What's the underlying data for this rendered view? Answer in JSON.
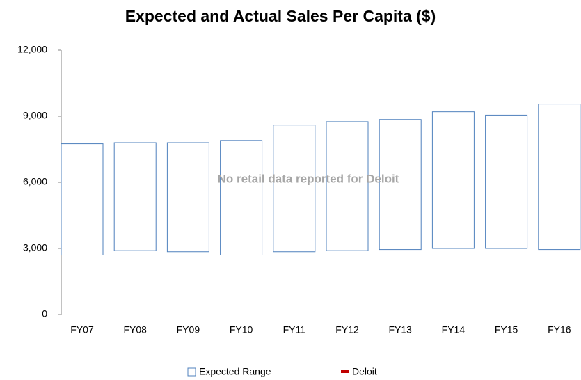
{
  "chart_data": {
    "type": "floating_bar",
    "title": "Expected and Actual Sales Per Capita ($)",
    "annotation": "No retail data reported for Deloit",
    "categories": [
      "FY07",
      "FY08",
      "FY09",
      "FY10",
      "FY11",
      "FY12",
      "FY13",
      "FY14",
      "FY15",
      "FY16"
    ],
    "series": [
      {
        "name": "Expected Range",
        "color": "#4f81bd",
        "low": [
          2700,
          2900,
          2850,
          2700,
          2850,
          2900,
          2950,
          3000,
          3000,
          2950
        ],
        "high": [
          7750,
          7800,
          7800,
          7900,
          8600,
          8750,
          8850,
          9200,
          9050,
          9550
        ]
      },
      {
        "name": "Deloit",
        "color": "#c00000",
        "values": [
          null,
          null,
          null,
          null,
          null,
          null,
          null,
          null,
          null,
          null
        ]
      }
    ],
    "ylim": [
      0,
      12000
    ],
    "yticks": [
      {
        "value": 0,
        "label": "0"
      },
      {
        "value": 3000,
        "label": "3,000"
      },
      {
        "value": 6000,
        "label": "6,000"
      },
      {
        "value": 9000,
        "label": "9,000"
      },
      {
        "value": 12000,
        "label": "12,000"
      }
    ],
    "grid": false,
    "legend": "bottom"
  }
}
